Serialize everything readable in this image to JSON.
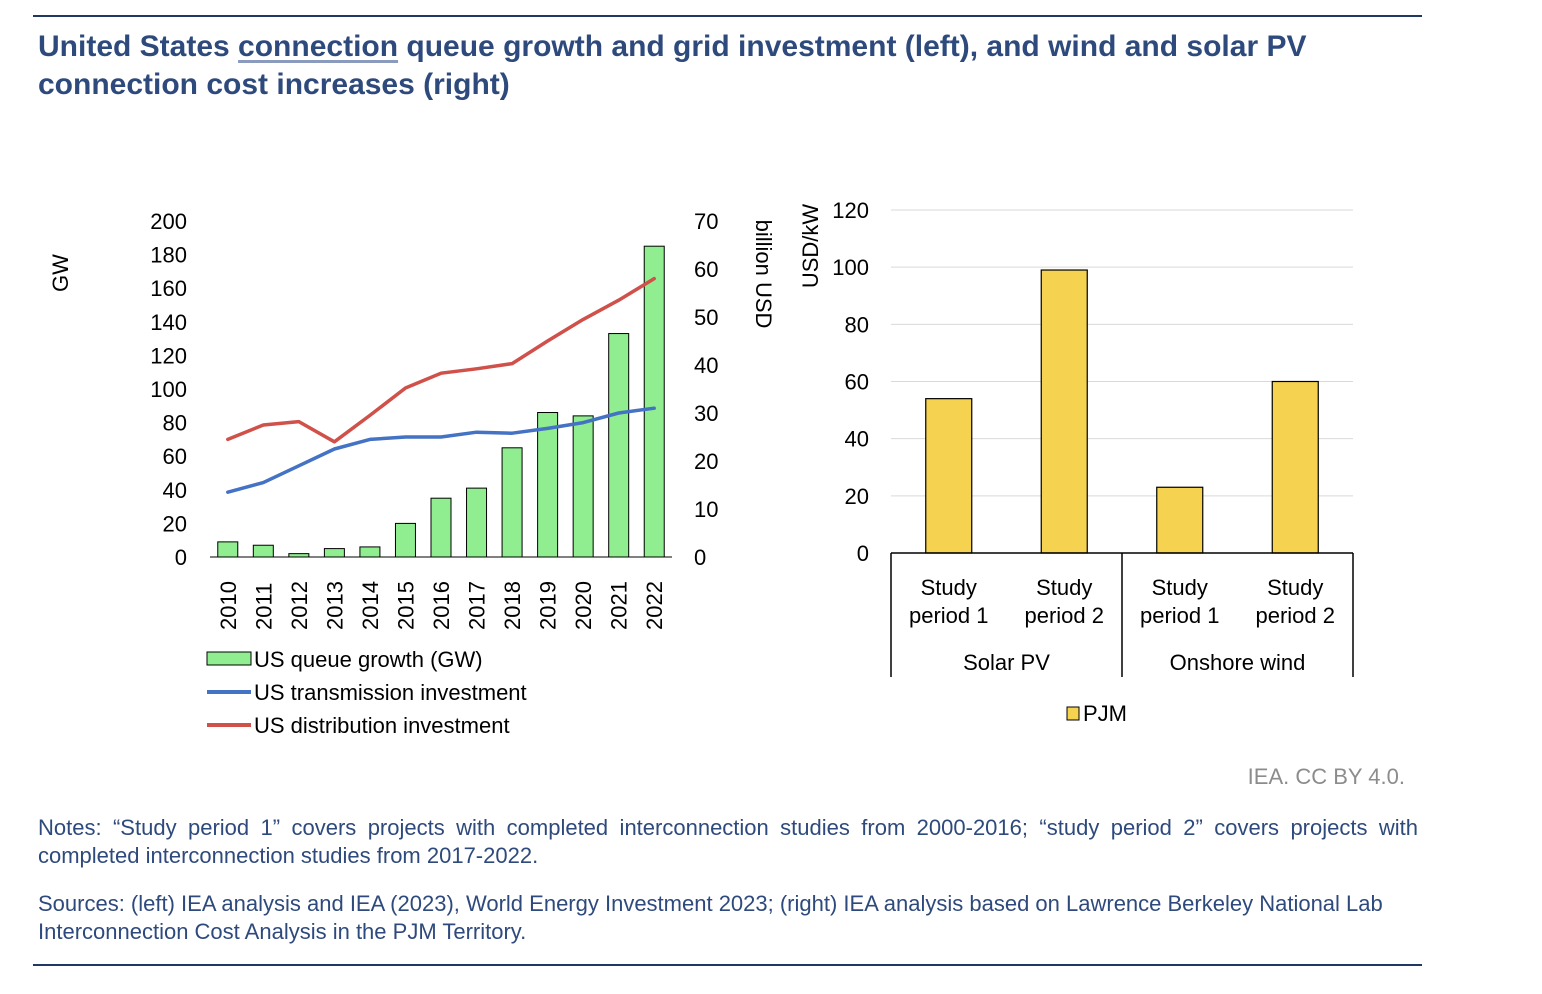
{
  "title_part1": "United States ",
  "title_link": "connection",
  "title_part2": " queue growth and grid investment (left), and wind and solar PV connection cost increases (right)",
  "credit": "IEA. CC BY 4.0.",
  "notes": "Notes: “Study period 1” covers projects with completed interconnection studies from 2000-2016; “study period 2” covers projects with completed interconnection studies from 2017-2022.",
  "sources": "Sources: (left) IEA analysis and IEA (2023), World Energy Investment 2023; (right) IEA analysis based on Lawrence Berkeley National Lab Interconnection Cost Analysis in the PJM Territory.",
  "colors": {
    "queue_bar": "#90ee90",
    "transmission_line": "#4472c4",
    "distribution_line": "#d0504a",
    "pjm_bar": "#f5d24f",
    "rule": "#1f3864",
    "title": "#2e4a7d"
  },
  "chart_data": [
    {
      "type": "bar+line",
      "categories": [
        "2010",
        "2011",
        "2012",
        "2013",
        "2014",
        "2015",
        "2016",
        "2017",
        "2018",
        "2019",
        "2020",
        "2021",
        "2022"
      ],
      "ylabel": "GW",
      "ylabel_right": "billion USD",
      "ylim": [
        0,
        200
      ],
      "y_ticks": [
        0,
        20,
        40,
        60,
        80,
        100,
        120,
        140,
        160,
        180,
        200
      ],
      "ylim_right": [
        0,
        70
      ],
      "y_ticks_right": [
        0,
        10,
        20,
        30,
        40,
        50,
        60,
        70
      ],
      "series": [
        {
          "name": "US queue growth (GW)",
          "kind": "bar",
          "axis": "left",
          "values": [
            9,
            7,
            2,
            5,
            6,
            20,
            35,
            41,
            65,
            86,
            84,
            133,
            185
          ]
        },
        {
          "name": "US transmission investment",
          "kind": "line",
          "axis": "right",
          "values": [
            13.5,
            15.5,
            19,
            22.5,
            24.5,
            25,
            25,
            26,
            25.8,
            26.8,
            28,
            30,
            31
          ]
        },
        {
          "name": "US distribution investment",
          "kind": "line",
          "axis": "right",
          "values": [
            24.5,
            27.5,
            28.2,
            24,
            29.5,
            35.2,
            38.3,
            39.2,
            40.3,
            45,
            49.5,
            53.5,
            58
          ]
        }
      ],
      "legend_position": "bottom"
    },
    {
      "type": "bar",
      "groups": [
        {
          "label": "Solar PV",
          "categories": [
            "Study period 1",
            "Study period 2"
          ]
        },
        {
          "label": "Onshore wind",
          "categories": [
            "Study period 1",
            "Study period 2"
          ]
        }
      ],
      "category_lines": [
        [
          "Study",
          "period 1"
        ],
        [
          "Study",
          "period 2"
        ],
        [
          "Study",
          "period 1"
        ],
        [
          "Study",
          "period 2"
        ]
      ],
      "series": [
        {
          "name": "PJM",
          "values": [
            54,
            99,
            23,
            60
          ]
        }
      ],
      "ylabel": "USD/kW",
      "ylim": [
        0,
        120
      ],
      "y_ticks": [
        0,
        20,
        40,
        60,
        80,
        100,
        120
      ],
      "grid": true,
      "legend_position": "bottom"
    }
  ]
}
